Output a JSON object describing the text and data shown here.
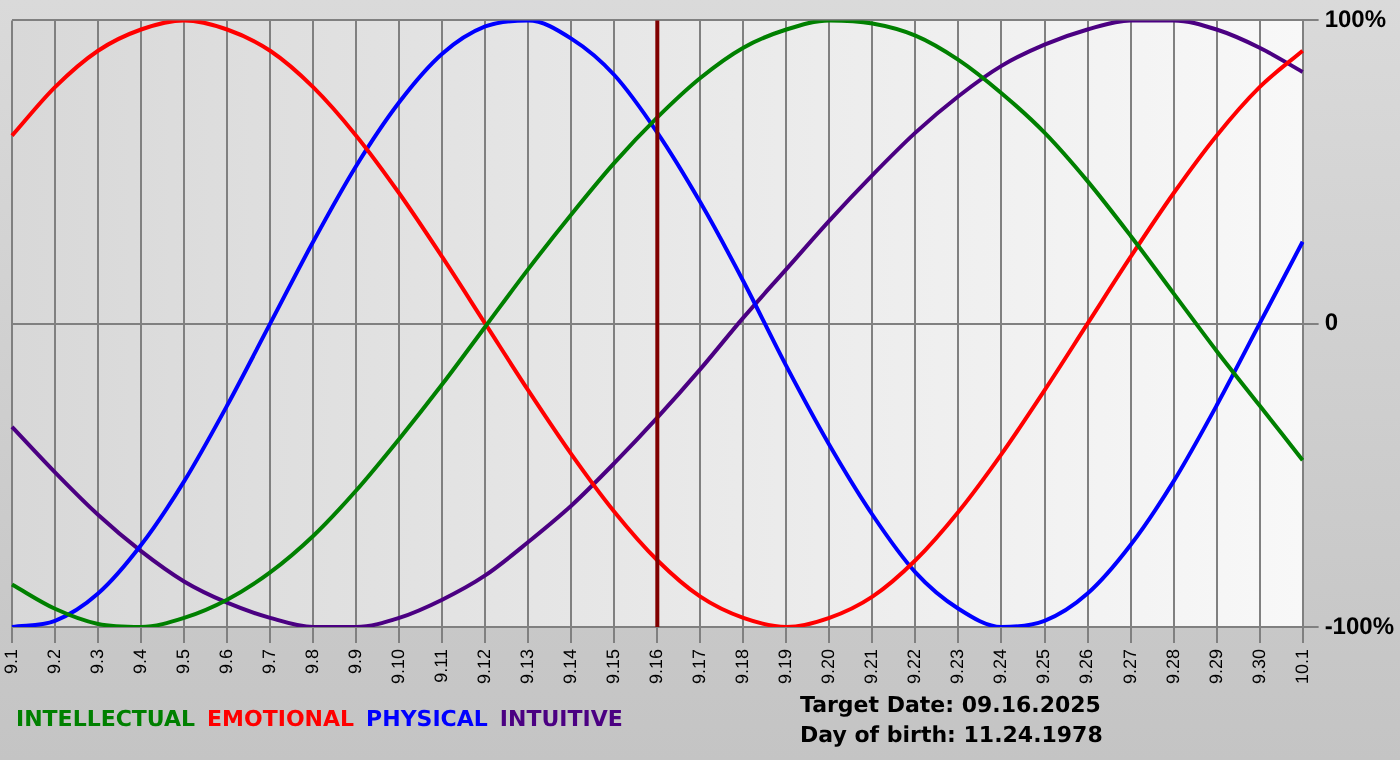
{
  "chart_data": {
    "type": "line",
    "categories": [
      "9.1",
      "9.2",
      "9.3",
      "9.4",
      "9.5",
      "9.6",
      "9.7",
      "9.8",
      "9.9",
      "9.10",
      "9.11",
      "9.12",
      "9.13",
      "9.14",
      "9.15",
      "9.16",
      "9.17",
      "9.18",
      "9.19",
      "9.20",
      "9.21",
      "9.22",
      "9.23",
      "9.24",
      "9.25",
      "9.26",
      "9.27",
      "9.28",
      "9.29",
      "9.30",
      "10.1"
    ],
    "series": [
      {
        "name": "INTELLECTUAL",
        "color": "#008000",
        "values": [
          -86,
          -94,
          -99,
          -100,
          -97,
          -91,
          -82,
          -70,
          -55,
          -38,
          -20,
          -1,
          18,
          36,
          53,
          68,
          81,
          91,
          97,
          100,
          99,
          95,
          87,
          76,
          63,
          47,
          29,
          10,
          -9,
          -27,
          -45
        ]
      },
      {
        "name": "EMOTIONAL",
        "color": "#ff0000",
        "values": [
          62,
          78,
          90,
          97,
          100,
          97,
          90,
          78,
          62,
          43,
          22,
          0,
          -22,
          -43,
          -62,
          -78,
          -90,
          -97,
          -100,
          -97,
          -90,
          -78,
          -62,
          -43,
          -22,
          0,
          22,
          43,
          62,
          78,
          90
        ]
      },
      {
        "name": "PHYSICAL",
        "color": "#0000ff",
        "values": [
          -100,
          -98,
          -89,
          -73,
          -52,
          -27,
          0,
          27,
          52,
          73,
          89,
          98,
          100,
          94,
          82,
          63,
          40,
          14,
          -14,
          -40,
          -63,
          -82,
          -94,
          -100,
          -98,
          -89,
          -73,
          -52,
          -27,
          0,
          27
        ]
      },
      {
        "name": "INTUITIVE",
        "color": "#4b0082",
        "values": [
          -34,
          -49,
          -63,
          -75,
          -85,
          -92,
          -97,
          -100,
          -100,
          -97,
          -91,
          -83,
          -72,
          -60,
          -46,
          -31,
          -15,
          2,
          18,
          34,
          49,
          63,
          75,
          85,
          92,
          97,
          100,
          100,
          97,
          91,
          83
        ]
      }
    ],
    "ylim": [
      -100,
      100
    ],
    "yticks": [
      {
        "value": -100,
        "label": "-100%"
      },
      0,
      {
        "value": 100,
        "label": "100%"
      }
    ],
    "grid": true,
    "legend": "bottom left",
    "marker": "none",
    "line_style": "solid",
    "ref_lines": [
      {
        "axis": "x",
        "value": "9.16",
        "color": "#800000"
      }
    ],
    "annotations": [
      "Target Date: 09.16.2025",
      "Day of birth: 11.24.1978"
    ]
  }
}
